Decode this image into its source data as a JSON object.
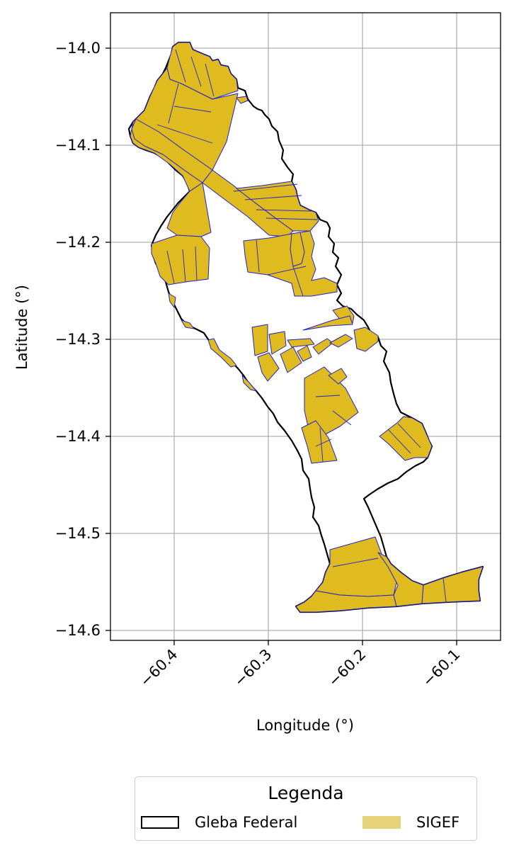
{
  "map": {
    "xlabel": "Longitude (°)",
    "ylabel": "Latitude (°)",
    "xlim": [
      -60.468,
      -60.053
    ],
    "ylim": [
      -14.611,
      -13.964
    ],
    "x_ticks": [
      {
        "value": -60.4,
        "label": "−60.4"
      },
      {
        "value": -60.3,
        "label": "−60.3"
      },
      {
        "value": -60.2,
        "label": "−60.2"
      },
      {
        "value": -60.1,
        "label": "−60.1"
      }
    ],
    "y_ticks": [
      {
        "value": -14.0,
        "label": "−14.0"
      },
      {
        "value": -14.1,
        "label": "−14.1"
      },
      {
        "value": -14.2,
        "label": "−14.2"
      },
      {
        "value": -14.3,
        "label": "−14.3"
      },
      {
        "value": -14.4,
        "label": "−14.4"
      },
      {
        "value": -14.5,
        "label": "−14.5"
      },
      {
        "value": -14.6,
        "label": "−14.6"
      }
    ],
    "grid": true,
    "colors": {
      "gleba_edge": "#000000",
      "sigef_fill": "#dfbb1f",
      "sigef_edge": "#2222cc",
      "legend_sigef": "#e6d27a",
      "grid": "#b0b0b0"
    }
  },
  "legend": {
    "title": "Legenda",
    "gleba_label": "Gleba Federal",
    "sigef_label": "SIGEF"
  }
}
